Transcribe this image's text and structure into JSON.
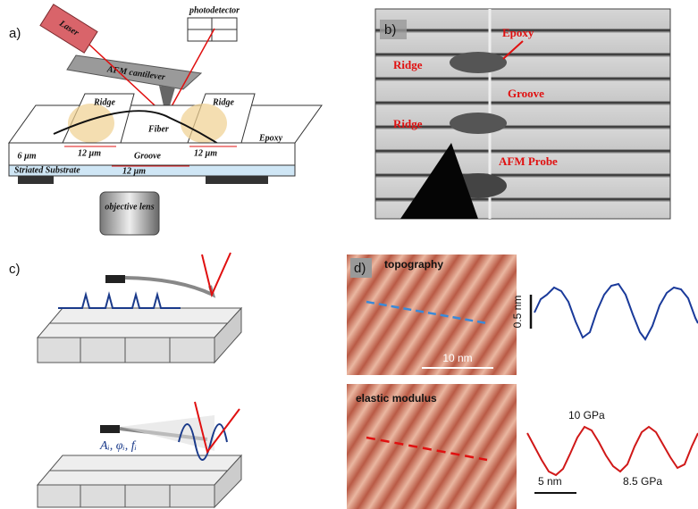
{
  "panels": {
    "a": {
      "label": "a)",
      "laser": "Laser",
      "photodetector": "photodetector",
      "cantilever": "AFM cantilever",
      "ridge_left": "Ridge",
      "ridge_right": "Ridge",
      "fiber": "Fiber",
      "epoxy": "Epoxy",
      "groove": "Groove",
      "height": "6 µm",
      "width_left": "12 µm",
      "width_right": "12 µm",
      "width_groove": "12 µm",
      "substrate": "Striated Substrate",
      "lens": "objective lens"
    },
    "b": {
      "label": "b)",
      "epoxy": "Epoxy",
      "ridge_top": "Ridge",
      "groove": "Groove",
      "ridge_bottom": "Ridge",
      "probe": "AFM Probe"
    },
    "c": {
      "label": "c)",
      "params": "Aᵢ, φᵢ, fᵢ"
    },
    "d": {
      "label": "d)",
      "topography": "topography",
      "topo_scale": "10 nm",
      "height_scale": "0.5 nm",
      "elastic": "elastic modulus",
      "peak": "10 GPa",
      "trough": "8.5 GPa",
      "profile_scale": "5 nm"
    }
  }
}
